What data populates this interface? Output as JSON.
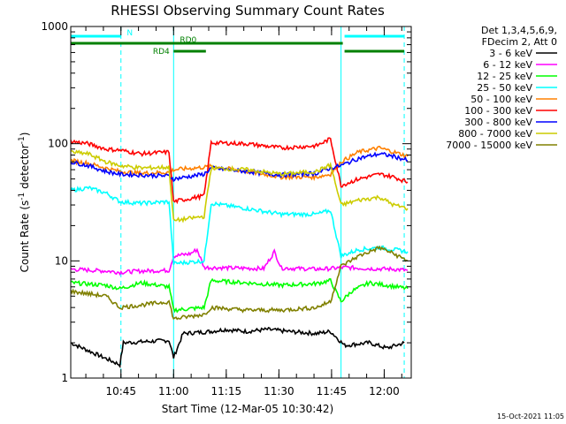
{
  "chart_data": {
    "type": "line",
    "title": "RHESSI Observing Summary Count Rates",
    "xlabel": "Start Time (12-Mar-05 10:30:42)",
    "ylabel_main": "Count Rate (s",
    "ylabel_sup1": "-1",
    "ylabel_mid": " detector",
    "ylabel_sup2": "-1",
    "ylabel_end": ")",
    "y_scale": "log",
    "ylim": [
      1,
      1000
    ],
    "xlim_minutes": [
      0,
      97
    ],
    "x_tick_minutes": [
      14.3,
      29.3,
      44.3,
      59.3,
      74.3,
      89.3
    ],
    "x_tick_labels": [
      "10:45",
      "11:00",
      "11:15",
      "11:30",
      "11:45",
      "12:00"
    ],
    "y_ticks": [
      1,
      10,
      100,
      1000
    ],
    "y_tick_labels": [
      "1",
      "10",
      "100",
      "1000"
    ],
    "timestamp": "15-Oct-2021 11:05",
    "legend_header": [
      "Det 1,3,4,5,6,9,",
      "FDecim 2, Att 0"
    ],
    "series": [
      {
        "name": "3 - 6 keV",
        "color": "#000000",
        "points": [
          [
            0,
            2
          ],
          [
            14,
            1.3
          ],
          [
            15,
            2
          ],
          [
            28,
            2.1
          ],
          [
            29.3,
            1.5
          ],
          [
            32,
            2.4
          ],
          [
            40,
            2.5
          ],
          [
            44,
            2.6
          ],
          [
            50,
            2.5
          ],
          [
            56,
            2.6
          ],
          [
            62,
            2.5
          ],
          [
            70,
            2.4
          ],
          [
            74,
            2.5
          ],
          [
            78,
            1.9
          ],
          [
            85,
            2
          ],
          [
            90,
            1.8
          ],
          [
            95,
            2
          ]
        ]
      },
      {
        "name": "6 - 12 keV",
        "color": "#ff00ff",
        "points": [
          [
            0,
            8.5
          ],
          [
            10,
            8.2
          ],
          [
            14,
            8.0
          ],
          [
            20,
            8.2
          ],
          [
            28,
            8.3
          ],
          [
            29.3,
            11
          ],
          [
            34,
            11.5
          ],
          [
            36,
            12.5
          ],
          [
            38,
            8.8
          ],
          [
            45,
            8.7
          ],
          [
            55,
            8.6
          ],
          [
            58,
            12
          ],
          [
            60,
            8.7
          ],
          [
            70,
            8.5
          ],
          [
            74,
            8.6
          ],
          [
            78,
            8.8
          ],
          [
            85,
            8.6
          ],
          [
            92,
            8.5
          ],
          [
            96,
            8.3
          ]
        ]
      },
      {
        "name": "12 - 25 keV",
        "color": "#00ff00",
        "points": [
          [
            0,
            6.5
          ],
          [
            10,
            6.2
          ],
          [
            14,
            5.8
          ],
          [
            20,
            6.5
          ],
          [
            28,
            6.0
          ],
          [
            29.3,
            3.8
          ],
          [
            38,
            4.0
          ],
          [
            40,
            6.8
          ],
          [
            50,
            6.5
          ],
          [
            60,
            6.2
          ],
          [
            70,
            6.4
          ],
          [
            74,
            6.8
          ],
          [
            77,
            4.5
          ],
          [
            80,
            5.5
          ],
          [
            85,
            6.5
          ],
          [
            90,
            6.2
          ],
          [
            96,
            5.8
          ]
        ]
      },
      {
        "name": "25 - 50 keV",
        "color": "#00ffff",
        "points": [
          [
            0,
            40
          ],
          [
            5,
            42
          ],
          [
            10,
            38
          ],
          [
            14,
            32
          ],
          [
            20,
            31
          ],
          [
            28,
            32
          ],
          [
            29.3,
            9.5
          ],
          [
            38,
            10
          ],
          [
            40,
            31
          ],
          [
            50,
            28
          ],
          [
            60,
            25
          ],
          [
            70,
            25
          ],
          [
            74,
            27
          ],
          [
            77,
            11
          ],
          [
            82,
            12.5
          ],
          [
            88,
            13
          ],
          [
            92,
            12.5
          ],
          [
            96,
            12
          ]
        ]
      },
      {
        "name": "50 - 100 keV",
        "color": "#ff8000",
        "points": [
          [
            0,
            72
          ],
          [
            5,
            68
          ],
          [
            10,
            62
          ],
          [
            14,
            58
          ],
          [
            20,
            56
          ],
          [
            28,
            57
          ],
          [
            29.3,
            60
          ],
          [
            38,
            63
          ],
          [
            40,
            64
          ],
          [
            50,
            58
          ],
          [
            60,
            52
          ],
          [
            70,
            52
          ],
          [
            74,
            55
          ],
          [
            77,
            70
          ],
          [
            82,
            85
          ],
          [
            88,
            92
          ],
          [
            92,
            85
          ],
          [
            96,
            78
          ]
        ]
      },
      {
        "name": "100 - 300 keV",
        "color": "#ff0000",
        "points": [
          [
            0,
            105
          ],
          [
            5,
            100
          ],
          [
            10,
            90
          ],
          [
            14,
            88
          ],
          [
            20,
            82
          ],
          [
            28,
            85
          ],
          [
            29.3,
            32
          ],
          [
            38,
            36
          ],
          [
            40,
            102
          ],
          [
            50,
            100
          ],
          [
            60,
            92
          ],
          [
            70,
            96
          ],
          [
            74,
            110
          ],
          [
            77,
            44
          ],
          [
            82,
            50
          ],
          [
            88,
            55
          ],
          [
            92,
            52
          ],
          [
            96,
            47
          ]
        ]
      },
      {
        "name": "300 - 800 keV",
        "color": "#0000ff",
        "points": [
          [
            0,
            70
          ],
          [
            5,
            65
          ],
          [
            10,
            58
          ],
          [
            14,
            55
          ],
          [
            20,
            54
          ],
          [
            28,
            53
          ],
          [
            29.3,
            50
          ],
          [
            38,
            55
          ],
          [
            40,
            62
          ],
          [
            50,
            58
          ],
          [
            60,
            54
          ],
          [
            70,
            56
          ],
          [
            74,
            62
          ],
          [
            77,
            65
          ],
          [
            82,
            75
          ],
          [
            88,
            82
          ],
          [
            92,
            78
          ],
          [
            96,
            72
          ]
        ]
      },
      {
        "name": "800 - 7000 keV",
        "color": "#cccc00",
        "points": [
          [
            0,
            85
          ],
          [
            5,
            82
          ],
          [
            10,
            70
          ],
          [
            14,
            65
          ],
          [
            20,
            62
          ],
          [
            28,
            63
          ],
          [
            29.3,
            22
          ],
          [
            38,
            24
          ],
          [
            40,
            62
          ],
          [
            50,
            60
          ],
          [
            60,
            55
          ],
          [
            70,
            58
          ],
          [
            74,
            66
          ],
          [
            77,
            30
          ],
          [
            82,
            33
          ],
          [
            88,
            35
          ],
          [
            92,
            30
          ],
          [
            96,
            28
          ]
        ]
      },
      {
        "name": "7000 - 15000 keV",
        "color": "#808000",
        "points": [
          [
            0,
            5.5
          ],
          [
            10,
            5.0
          ],
          [
            14,
            4.0
          ],
          [
            20,
            4.2
          ],
          [
            28,
            4.5
          ],
          [
            29.3,
            3.2
          ],
          [
            38,
            3.5
          ],
          [
            40,
            4.0
          ],
          [
            50,
            3.8
          ],
          [
            60,
            3.8
          ],
          [
            70,
            4.0
          ],
          [
            74,
            4.5
          ],
          [
            77,
            9
          ],
          [
            82,
            11
          ],
          [
            88,
            13
          ],
          [
            92,
            11.5
          ],
          [
            96,
            10
          ]
        ]
      }
    ],
    "attenuator_bars": [
      {
        "label": "N",
        "color": "#00ffff",
        "from_minutes": 0,
        "to_minutes": 14.3,
        "level": "top"
      },
      {
        "label": "",
        "color": "#00ffff",
        "from_minutes": 78,
        "to_minutes": 95,
        "level": "top"
      },
      {
        "label": "RD0",
        "color": "#008000",
        "from_minutes": 0,
        "to_minutes": 77.5,
        "level": "middle"
      },
      {
        "label": "",
        "color": "#008000",
        "from_minutes": 78,
        "to_minutes": 95,
        "level": "lower"
      },
      {
        "label": "RD4",
        "color": "#008000",
        "from_minutes": 29.3,
        "to_minutes": 38.5,
        "level": "lower"
      }
    ],
    "dashed_markers_minutes": [
      14.3,
      95
    ],
    "solid_markers_minutes": [
      29.3,
      77
    ]
  }
}
